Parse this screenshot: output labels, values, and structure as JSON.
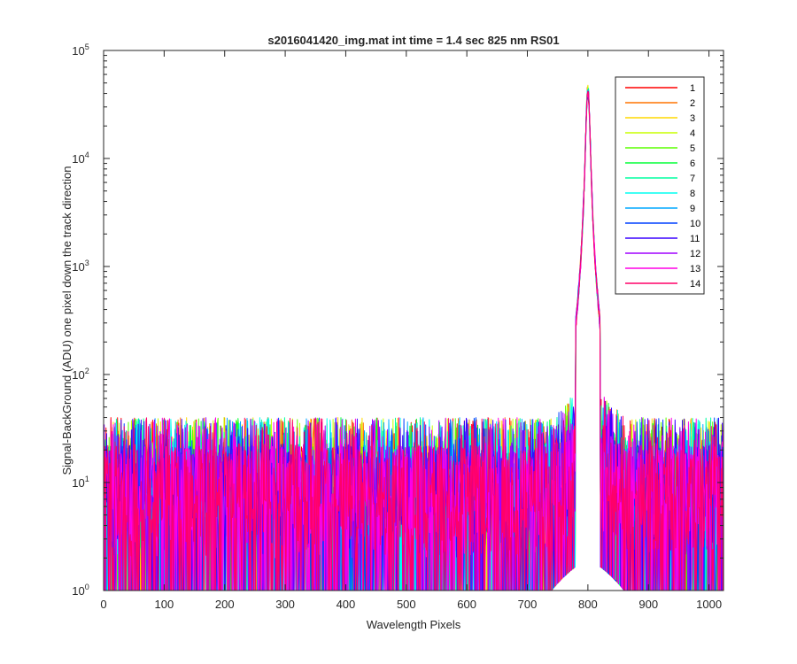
{
  "chart_data": {
    "type": "line",
    "title": "s2016041420_img.mat int time = 1.4 sec  825 nm RS01",
    "xlabel": "Wavelength Pixels",
    "ylabel": "Signal-BackGround (ADU) one pixel down the track direction",
    "xlim": [
      0,
      1024
    ],
    "ylim": [
      1,
      100000
    ],
    "yscale": "log",
    "xticks": [
      "0",
      "100",
      "200",
      "300",
      "400",
      "500",
      "600",
      "700",
      "800",
      "900",
      "1000"
    ],
    "yticks": [
      {
        "base": "10",
        "exp": "0"
      },
      {
        "base": "10",
        "exp": "1"
      },
      {
        "base": "10",
        "exp": "2"
      },
      {
        "base": "10",
        "exp": "3"
      },
      {
        "base": "10",
        "exp": "4"
      },
      {
        "base": "10",
        "exp": "5"
      }
    ],
    "grid": false,
    "legend_position": "top-right",
    "peak": {
      "x": 800,
      "y": 42000,
      "halfwidth_pixels": 3
    },
    "noise_floor": {
      "min": 1,
      "typical": 10,
      "max": 40
    },
    "series": [
      {
        "name": "1",
        "color": "#ff0000"
      },
      {
        "name": "2",
        "color": "#ff7300"
      },
      {
        "name": "3",
        "color": "#ffd800"
      },
      {
        "name": "4",
        "color": "#c8ff00"
      },
      {
        "name": "5",
        "color": "#5bff00"
      },
      {
        "name": "6",
        "color": "#00ff36"
      },
      {
        "name": "7",
        "color": "#00ffa0"
      },
      {
        "name": "8",
        "color": "#00fff0"
      },
      {
        "name": "9",
        "color": "#00a8ff"
      },
      {
        "name": "10",
        "color": "#0040ff"
      },
      {
        "name": "11",
        "color": "#3a00ff"
      },
      {
        "name": "12",
        "color": "#a000ff"
      },
      {
        "name": "13",
        "color": "#ff00e6"
      },
      {
        "name": "14",
        "color": "#ff0068"
      }
    ]
  }
}
